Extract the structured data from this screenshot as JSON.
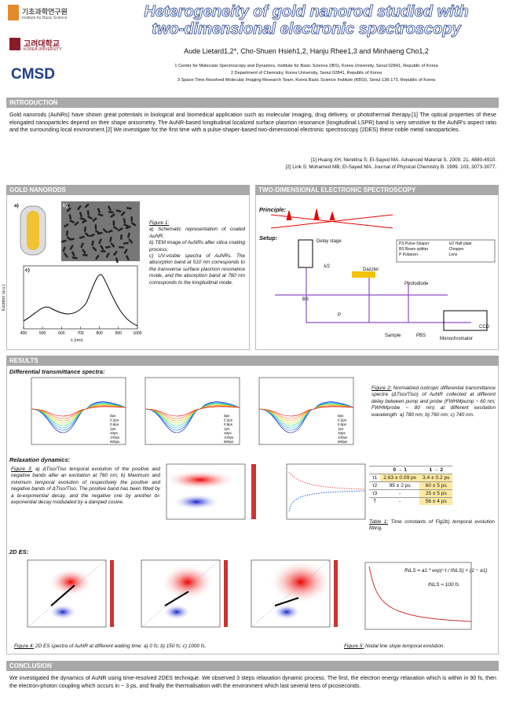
{
  "header": {
    "title_line1": "Heterogeneity of gold nanorod studied with",
    "title_line2": "two-dimensional electronic spectroscopy",
    "authors": "Aude Lietard1,2*, Cho-Shuen Hsieh1,2, Hanju Rhee1,3 and Minhaeng Cho1,2",
    "affiliations": [
      "1 Center for Molecular Spectroscopy and Dynamics, Institute for Basic Science (IBS), Korea University, Seoul 02841, Republic of Korea",
      "2 Department of Chemistry, Korea University, Seoul 02841, Republic of Korea",
      "3 Space-Time Resolved Molecular Imaging Research Team, Korea Basic Science Institute (KBSI), Seoul 136-173, Republic of Korea"
    ],
    "logos": [
      "기초과학연구원",
      "Institute for Basic Science",
      "고려대학교",
      "KOREA UNIVERSITY",
      "CMSD"
    ]
  },
  "intro": {
    "heading": "INTRODUCTION",
    "text": "Gold nanorods (AuNRs) have shown great potentials in biological and biomedical application such as molecular imaging, drug delivery, or photothermal therapy.[1] The optical properties of these elongated nanoparticles depend on their shape anisometry. The AuNR-based longitudinal localized surface plasmon resonance (longitudinal LSPR) band is very sensitive to the AuNR's aspect ratio and the surrounding local environment.[2] We investigate for the first time with a pulse-shaper-based two-dimensional electronic spectroscopy (2DES) these noble metal nanoparticles.",
    "refs": [
      "[1] Huang XH; Neretina S; El-Sayed MA. Advanced Material S. 2009. 21, 4880-4910.",
      "[2] Link S; Mohamed MB; El-Sayed MA. Journal of Physical Chemistry B. 1999. 103, 3073-3077."
    ]
  },
  "gold": {
    "heading": "GOLD NANORODS",
    "panels": [
      "a)",
      "b)",
      "c)"
    ],
    "fig_label": "Figure 1:",
    "caption": [
      "a) Schematic representation of coated AuNR;",
      "b) TEM image of AuNRs after silica coating process;",
      "c) UV-visible spectra of AuNRs. The absorption band at 510 nm corresponds to the transverse surface plasmon resonance mode, and the absorption band at 760 nm corresponds to the longitudinal mode."
    ],
    "plot": {
      "xlabel": "λ (nm)",
      "ylabel": "Excition (a.u.)",
      "xlim": [
        400,
        1000
      ],
      "xticks": [
        400,
        500,
        600,
        700,
        800,
        900,
        1000
      ]
    }
  },
  "tdes": {
    "heading": "TWO-DIMENSIONAL ELECTRONIC SPECTROSCOPY",
    "principle": "Principle:",
    "setup": "Setup:",
    "labels": [
      "Delay stage",
      "Dazzler",
      "Photodiode",
      "BS",
      "λ/2",
      "P",
      "Sample",
      "PBS",
      "Monochromator",
      "CCD"
    ],
    "legend": [
      "PS  Pulse-Shaper",
      "BS  Beam splitter",
      "P    Polarizer",
      "λ/2  Half plate",
      "Chopper",
      "Lens"
    ]
  },
  "results": {
    "heading": "RESULTS",
    "sub1": "Differential transmittance spectra:",
    "sub2": "Relaxation dynamics:",
    "sub3": "2D ES:",
    "fig2_label": "Figure 2:",
    "fig2": " Normalized isotropic differential transmittance spectra (ΔTiso/Tiso) of AuNR collected at different delay between pump and probe (FWHMpump ~ 60 nm; FWHMprobe ~ 80 nm) at different excitation wavelength: a) 780 nm; b) 760 nm; c) 740 nm.",
    "fig2_legend": [
      "0ps",
      "0.2ps",
      "0.5ps",
      "1ps",
      "10ps",
      "100ps",
      "900ps"
    ],
    "fig3_label": "Figure 3:",
    "fig3": " a) ΔTiso/Tiso temporal evolution of the positive and negative bands after an excitation at 760 nm; b) Maximum and minimum temporal evolution of respectively the positive and negative bands of ΔTiso/Tiso. The positive band has been fitted by a bi-exponential decay, and the negative one by another bi-exponential decay modulated by a damped cosine.",
    "table": {
      "header": [
        "",
        "0 → 1",
        "1 → 2"
      ],
      "rows": [
        [
          "τ1",
          "2.63 ± 0.09 ps",
          "3.4 ± 0.2 ps"
        ],
        [
          "τ2",
          "95 ± 2 ps",
          "60 ± 5 ps"
        ],
        [
          "τ3",
          "-",
          "25 ± 5 ps"
        ],
        [
          "T",
          "-",
          "56 ± 4 ps"
        ]
      ]
    },
    "table_label": "Table 1:",
    "table_caption": " Time constants of Fig2b) temporal evolution fitting.",
    "fig4_label": "Figure 4:",
    "fig4": " 2D ES spectra of AuNR at different waiting time: a) 0 fs; b) 150 fs; c) 1000 fs.",
    "fig5_label": "Figure 5:",
    "fig5": " Nodal line slope temporal evolution.",
    "fig5_formula": "fNLS = a1 * exp(−t / tNLS) + (1 − a1)",
    "fig5_tau": "tNLS ≈ 100 fs"
  },
  "conclusion": {
    "heading": "CONCLUSION",
    "text": "We investigated the dynamics of AuNR using time-resolved 2DES technique. We observed 3 steps relaxation dynamic process. The first, the electron energy relaxation which is within in 90 fs, then the electron-photon coupling which occurs in ~ 3 ps, and finally the thermalisation with the environment which last several tens of picoseconds."
  }
}
